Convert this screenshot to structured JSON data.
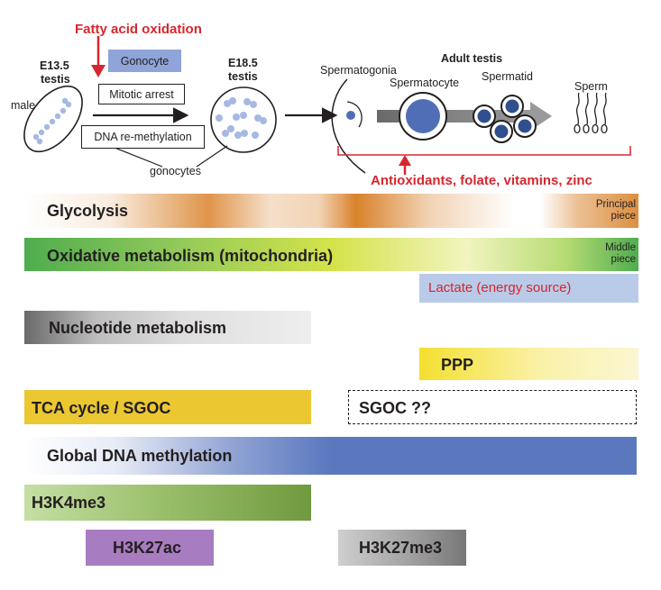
{
  "top": {
    "fatty_acid": "Fatty acid oxidation",
    "gonocyte": "Gonocyte",
    "mitotic_arrest": "Mitotic arrest",
    "dna_remeth": "DNA re-methylation",
    "e135": "E13.5",
    "testis1": "testis",
    "male": "male",
    "e185": "E18.5",
    "testis2": "testis",
    "gonocytes": "gonocytes",
    "spermatogonia": "Spermatogonia",
    "adult_testis": "Adult testis",
    "spermatocyte": "Spermatocyte",
    "spermatid": "Spermatid",
    "sperm": "Sperm",
    "antioxidants": "Antioxidants, folate, vitamins, zinc"
  },
  "bars": {
    "glycolysis": "Glycolysis",
    "principal_1": "Principal",
    "principal_2": "piece",
    "oxidative": "Oxidative metabolism (mitochondria)",
    "middle_1": "Middle",
    "middle_2": "piece",
    "lactate": "Lactate (energy source)",
    "nucleotide": "Nucleotide metabolism",
    "ppp": "PPP",
    "tca": "TCA cycle / SGOC",
    "sgoc": "SGOC ??",
    "global_dna": "Global DNA methylation",
    "h3k4me3": "H3K4me3",
    "h3k27ac": "H3K27ac",
    "h3k27me3": "H3K27me3"
  },
  "colors": {
    "accent_red": "#d7262e",
    "gonocyte_box": "#8fa4d8",
    "cell_blue": "#4f6eb5",
    "glycolysis": "#d9822b",
    "oxidative_green": "#4fad4f",
    "oxidative_yellow": "#d4e34a",
    "lactate": "#b9cbe8",
    "nucleotide": "#6f6f6f",
    "ppp": "#f6e65a",
    "tca": "#ebc732",
    "dna_methylation": "#5b78bf",
    "h3k4me3": "#6f9a3e",
    "h3k27ac": "#a87cc0",
    "h3k27me3": "#777777"
  }
}
